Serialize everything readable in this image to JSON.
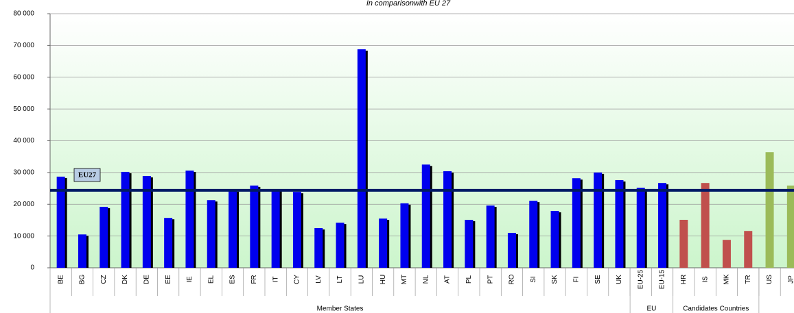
{
  "chart_data": {
    "type": "bar",
    "title": "In comparisonwith  EU 27",
    "categories": [
      "BE",
      "BG",
      "CZ",
      "DK",
      "DE",
      "EE",
      "IE",
      "EL",
      "ES",
      "FR",
      "IT",
      "CY",
      "LV",
      "LT",
      "LU",
      "HU",
      "MT",
      "NL",
      "AT",
      "PL",
      "PT",
      "RO",
      "SI",
      "SK",
      "FI",
      "SE",
      "UK",
      "EU-25",
      "EU-15",
      "HR",
      "IS",
      "MK",
      "TR",
      "US",
      "JP"
    ],
    "values": [
      28700,
      10500,
      19200,
      30200,
      28900,
      15700,
      30600,
      21300,
      24400,
      25900,
      24600,
      23900,
      12500,
      14200,
      68800,
      15500,
      20300,
      32500,
      30400,
      15100,
      19600,
      11000,
      21100,
      17900,
      28200,
      30000,
      27600,
      25200,
      26700,
      15100,
      26700,
      8800,
      11600,
      36400,
      25900
    ],
    "colors": [
      "#0000ee",
      "#0000ee",
      "#0000ee",
      "#0000ee",
      "#0000ee",
      "#0000ee",
      "#0000ee",
      "#0000ee",
      "#0000ee",
      "#0000ee",
      "#0000ee",
      "#0000ee",
      "#0000ee",
      "#0000ee",
      "#0000ee",
      "#0000ee",
      "#0000ee",
      "#0000ee",
      "#0000ee",
      "#0000ee",
      "#0000ee",
      "#0000ee",
      "#0000ee",
      "#0000ee",
      "#0000ee",
      "#0000ee",
      "#0000ee",
      "#0000ee",
      "#0000ee",
      "#c0504d",
      "#c0504d",
      "#c0504d",
      "#c0504d",
      "#9bbb59",
      "#9bbb59"
    ],
    "shadow": [
      true,
      true,
      true,
      true,
      true,
      true,
      true,
      true,
      true,
      true,
      true,
      true,
      true,
      true,
      true,
      true,
      true,
      true,
      true,
      true,
      true,
      true,
      true,
      true,
      true,
      true,
      true,
      true,
      true,
      false,
      false,
      false,
      false,
      false,
      false
    ],
    "groups": [
      {
        "label": "Member States",
        "size": 27
      },
      {
        "label": "EU",
        "size": 2
      },
      {
        "label": "Candidates Countries",
        "size": 4
      }
    ],
    "reference": {
      "label": "EU27",
      "value": 24400,
      "color": "#001a66"
    },
    "ylim": [
      0,
      80000
    ],
    "yticks": [
      0,
      {
        "value": 10000,
        "label": "10 000"
      },
      {
        "value": 20000,
        "label": "20 000"
      },
      {
        "value": 30000,
        "label": "30 000"
      },
      {
        "value": 40000,
        "label": "40 000"
      },
      {
        "value": 50000,
        "label": "50 000"
      },
      {
        "value": 60000,
        "label": "60 000"
      },
      {
        "value": 70000,
        "label": "70 000"
      },
      {
        "value": 80000,
        "label": "80 000"
      }
    ],
    "grid": true
  }
}
